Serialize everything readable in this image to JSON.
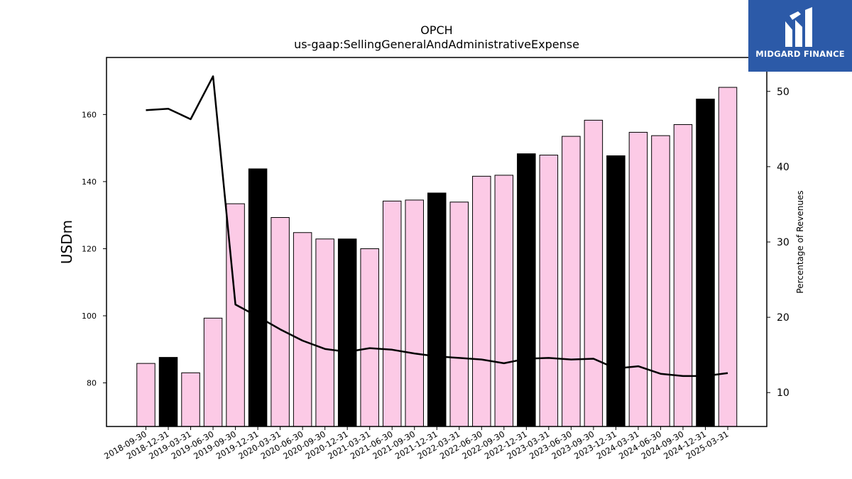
{
  "chart_data": {
    "type": "bar",
    "title": "OPCH",
    "subtitle": "us-gaap:SellingGeneralAndAdministrativeExpense",
    "ylabel": "USDm",
    "y2label": "Percentage of Revenues",
    "ylim": [
      67,
      177
    ],
    "y2lim": [
      5.5,
      54.5
    ],
    "yticks": [
      80,
      100,
      120,
      140,
      160
    ],
    "y2ticks": [
      10,
      20,
      30,
      40,
      50
    ],
    "grid": false,
    "colors": {
      "quarter": "#fccae6",
      "year_end": "#000000",
      "line": "#000000"
    },
    "categories": [
      "2018-09-30",
      "2018-12-31",
      "2019-03-31",
      "2019-06-30",
      "2019-09-30",
      "2019-12-31",
      "2020-03-31",
      "2020-06-30",
      "2020-09-30",
      "2020-12-31",
      "2021-03-31",
      "2021-06-30",
      "2021-09-30",
      "2021-12-31",
      "2022-03-31",
      "2022-06-30",
      "2022-09-30",
      "2022-12-31",
      "2023-03-31",
      "2023-06-30",
      "2023-09-30",
      "2023-12-31",
      "2024-03-31",
      "2024-06-30",
      "2024-09-30",
      "2024-12-31",
      "2025-03-31"
    ],
    "values": [
      85.8,
      87.6,
      83.0,
      99.3,
      133.4,
      143.8,
      129.3,
      124.8,
      122.9,
      122.9,
      120.0,
      134.2,
      134.5,
      136.6,
      133.9,
      141.6,
      141.9,
      148.3,
      147.9,
      153.5,
      158.3,
      147.7,
      154.7,
      153.7,
      157.0,
      164.6,
      168.1
    ],
    "year_end": [
      false,
      true,
      false,
      false,
      false,
      true,
      false,
      false,
      false,
      true,
      false,
      false,
      false,
      true,
      false,
      false,
      false,
      true,
      false,
      false,
      false,
      true,
      false,
      false,
      false,
      true,
      false
    ],
    "line_series": {
      "axis": "right",
      "values": [
        47.5,
        47.7,
        46.3,
        52.0,
        21.7,
        20.1,
        18.4,
        16.9,
        15.8,
        15.4,
        15.9,
        15.7,
        15.2,
        14.8,
        14.6,
        14.4,
        13.9,
        14.5,
        14.6,
        14.4,
        14.5,
        13.2,
        13.5,
        12.5,
        12.2,
        12.2,
        12.6
      ]
    }
  },
  "logo": {
    "text": "MIDGARD FINANCE"
  }
}
